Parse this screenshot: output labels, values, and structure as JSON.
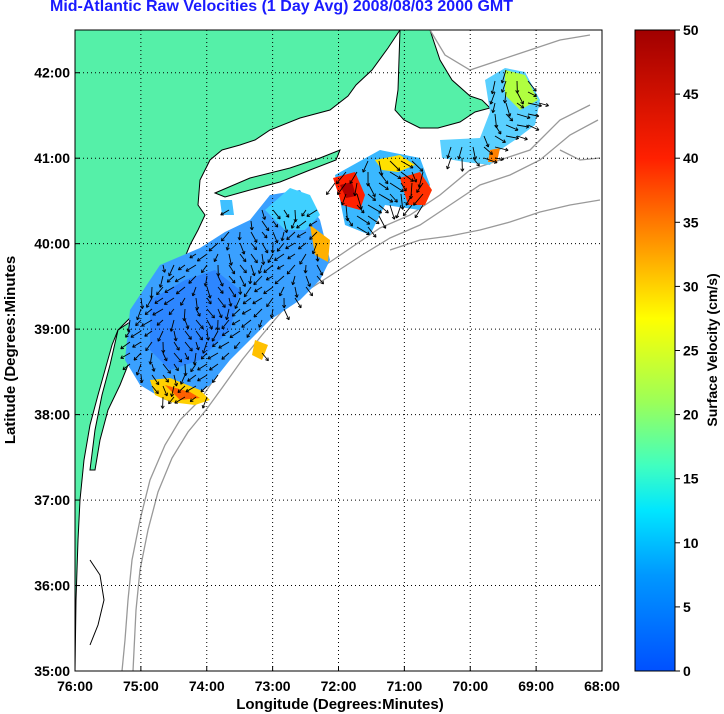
{
  "title": "Mid-Atlantic Raw Velocities (1 Day Avg) 2008/08/03 2000 GMT",
  "axes": {
    "xlabel": "Longitude (Degrees:Minutes)",
    "ylabel": "Latitude (Degrees:Minutes",
    "xticks": [
      "76:00",
      "75:00",
      "74:00",
      "73:00",
      "72:00",
      "71:00",
      "70:00",
      "69:00",
      "68:00"
    ],
    "yticks": [
      "35:00",
      "36:00",
      "37:00",
      "38:00",
      "39:00",
      "40:00",
      "41:00",
      "42:00"
    ],
    "xlim_deg_west": [
      76,
      68
    ],
    "ylim_deg_north": [
      35,
      42.5
    ],
    "grid": "dotted"
  },
  "colorbar": {
    "label": "Surface Velocity (cm/s)",
    "ticks": [
      "0",
      "5",
      "10",
      "15",
      "20",
      "25",
      "30",
      "35",
      "40",
      "45",
      "50"
    ],
    "range": [
      0,
      50
    ],
    "colormap": "jet"
  },
  "colors": {
    "title": "#1a1aff",
    "land": "#55f0a8",
    "bathymetry": "#999999",
    "arrows": "#000000"
  }
}
